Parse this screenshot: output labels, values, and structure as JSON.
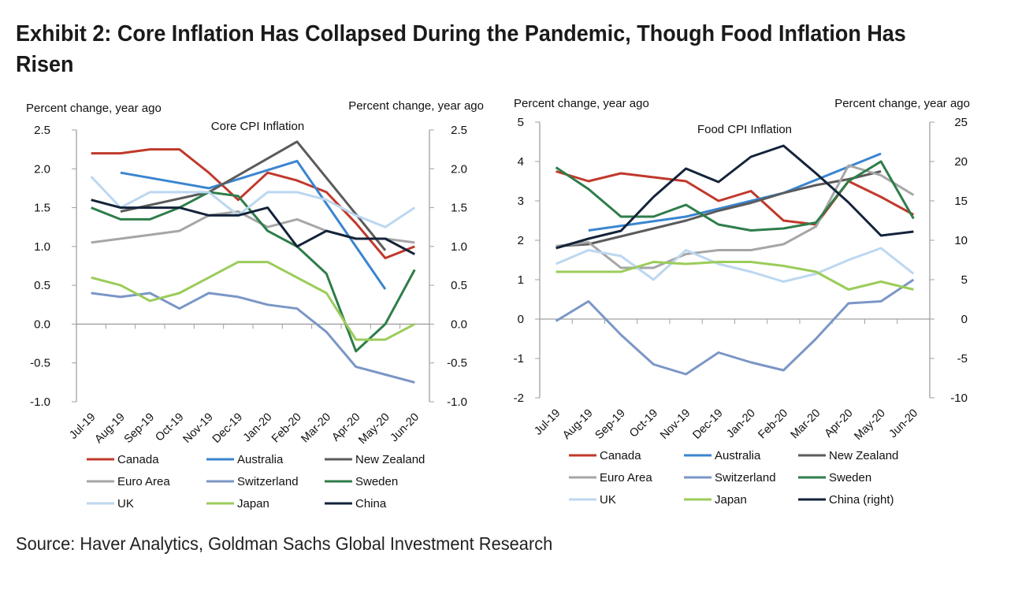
{
  "title": "Exhibit 2: Core Inflation Has Collapsed During the Pandemic, Though Food Inflation Has Risen",
  "source": "Source: Haver Analytics, Goldman Sachs Global Investment Research",
  "colors": {
    "Canada": "#c0392b",
    "Australia": "#3a85d0",
    "New Zealand": "#5b5b5b",
    "Euro Area": "#a6a6a6",
    "Switzerland": "#7b96c6",
    "Sweden": "#2e7d4a",
    "UK": "#bcd7f0",
    "Japan": "#9bcc5a",
    "China": "#14233a",
    "China (right)": "#14233a"
  },
  "chart_data": [
    {
      "type": "line",
      "title": "Core CPI Inflation",
      "ylabel_left": "Percent change, year ago",
      "ylabel_right": "Percent change, year ago",
      "categories": [
        "Jul-19",
        "Aug-19",
        "Sep-19",
        "Oct-19",
        "Nov-19",
        "Dec-19",
        "Jan-20",
        "Feb-20",
        "Mar-20",
        "Apr-20",
        "May-20",
        "Jun-20"
      ],
      "ylim": [
        -1.0,
        2.5
      ],
      "yticks": [
        "2.5",
        "2.0",
        "1.5",
        "1.0",
        "0.5",
        "0.0",
        "-0.5",
        "-1.0"
      ],
      "ytick_values": [
        2.5,
        2.0,
        1.5,
        1.0,
        0.5,
        0.0,
        -0.5,
        -1.0
      ],
      "y2lim": [
        -1.0,
        2.5
      ],
      "y2ticks": [
        "2.5",
        "2.0",
        "1.5",
        "1.0",
        "0.5",
        "0.0",
        "-0.5",
        "-1.0"
      ],
      "y2tick_values": [
        2.5,
        2.0,
        1.5,
        1.0,
        0.5,
        0.0,
        -0.5,
        -1.0
      ],
      "grid": false,
      "legend": "bottom",
      "legend_entries": [
        "Canada",
        "Australia",
        "New Zealand",
        "Euro Area",
        "Switzerland",
        "Sweden",
        "UK",
        "Japan",
        "China"
      ],
      "series": [
        {
          "name": "Canada",
          "axis": "left",
          "values": [
            2.2,
            2.2,
            2.25,
            2.25,
            1.95,
            1.6,
            1.95,
            1.85,
            1.7,
            1.3,
            0.85,
            1.0
          ]
        },
        {
          "name": "Australia",
          "axis": "left",
          "values": [
            null,
            1.95,
            null,
            null,
            1.75,
            null,
            null,
            2.1,
            null,
            null,
            0.45,
            null
          ]
        },
        {
          "name": "New Zealand",
          "axis": "left",
          "values": [
            null,
            1.45,
            null,
            null,
            1.7,
            null,
            null,
            2.35,
            null,
            null,
            0.95,
            null
          ]
        },
        {
          "name": "Euro Area",
          "axis": "left",
          "values": [
            1.05,
            1.1,
            1.15,
            1.2,
            1.4,
            1.45,
            1.25,
            1.35,
            1.2,
            1.1,
            1.1,
            1.05
          ]
        },
        {
          "name": "Switzerland",
          "axis": "left",
          "values": [
            0.4,
            0.35,
            0.4,
            0.2,
            0.4,
            0.35,
            0.25,
            0.2,
            -0.1,
            -0.55,
            -0.65,
            -0.75
          ]
        },
        {
          "name": "Sweden",
          "axis": "left",
          "values": [
            1.5,
            1.35,
            1.35,
            1.5,
            1.7,
            1.65,
            1.2,
            1.0,
            0.65,
            -0.35,
            0.0,
            0.7
          ]
        },
        {
          "name": "UK",
          "axis": "left",
          "values": [
            1.9,
            1.5,
            1.7,
            1.7,
            1.7,
            1.4,
            1.7,
            1.7,
            1.6,
            1.4,
            1.25,
            1.5
          ]
        },
        {
          "name": "Japan",
          "axis": "left",
          "values": [
            0.6,
            0.5,
            0.3,
            0.4,
            0.6,
            0.8,
            0.8,
            0.6,
            0.4,
            -0.2,
            -0.2,
            0.0
          ]
        },
        {
          "name": "China",
          "axis": "left",
          "values": [
            1.6,
            1.5,
            1.5,
            1.5,
            1.4,
            1.4,
            1.5,
            1.0,
            1.2,
            1.1,
            1.1,
            0.9
          ]
        }
      ]
    },
    {
      "type": "line",
      "title": "Food CPI Inflation",
      "ylabel_left": "Percent change, year ago",
      "ylabel_right": "Percent change, year ago",
      "categories": [
        "Jul-19",
        "Aug-19",
        "Sep-19",
        "Oct-19",
        "Nov-19",
        "Dec-19",
        "Jan-20",
        "Feb-20",
        "Mar-20",
        "Apr-20",
        "May-20",
        "Jun-20"
      ],
      "ylim": [
        -2,
        5
      ],
      "yticks": [
        "5",
        "4",
        "3",
        "2",
        "1",
        "0",
        "-1",
        "-2"
      ],
      "ytick_values": [
        5,
        4,
        3,
        2,
        1,
        0,
        -1,
        -2
      ],
      "y2lim": [
        -10,
        25
      ],
      "y2ticks": [
        "25",
        "20",
        "15",
        "10",
        "5",
        "0",
        "-5",
        "-10"
      ],
      "y2tick_values": [
        25,
        20,
        15,
        10,
        5,
        0,
        -5,
        -10
      ],
      "grid": false,
      "legend": "bottom",
      "legend_entries": [
        "Canada",
        "Australia",
        "New Zealand",
        "Euro Area",
        "Switzerland",
        "Sweden",
        "UK",
        "Japan",
        "China (right)"
      ],
      "series": [
        {
          "name": "Canada",
          "axis": "left",
          "values": [
            3.75,
            3.5,
            3.7,
            3.6,
            3.5,
            3.0,
            3.25,
            2.5,
            2.4,
            3.5,
            3.1,
            2.65
          ]
        },
        {
          "name": "Australia",
          "axis": "left",
          "values": [
            null,
            2.25,
            null,
            null,
            2.6,
            null,
            null,
            3.2,
            null,
            null,
            4.2,
            null
          ]
        },
        {
          "name": "New Zealand",
          "axis": "left",
          "values": [
            1.85,
            1.9,
            2.1,
            2.3,
            2.5,
            2.75,
            2.95,
            3.2,
            3.4,
            3.55,
            3.75,
            null
          ]
        },
        {
          "name": "Euro Area",
          "axis": "left",
          "values": [
            1.85,
            1.95,
            1.3,
            1.3,
            1.65,
            1.75,
            1.75,
            1.9,
            2.35,
            3.9,
            3.65,
            3.15
          ]
        },
        {
          "name": "Switzerland",
          "axis": "left",
          "values": [
            -0.05,
            0.45,
            -0.4,
            -1.15,
            -1.4,
            -0.85,
            -1.1,
            -1.3,
            -0.5,
            0.4,
            0.45,
            1.0
          ]
        },
        {
          "name": "Sweden",
          "axis": "left",
          "values": [
            3.85,
            3.3,
            2.6,
            2.6,
            2.9,
            2.4,
            2.25,
            2.3,
            2.45,
            3.5,
            4.0,
            2.55
          ]
        },
        {
          "name": "UK",
          "axis": "left",
          "values": [
            1.4,
            1.75,
            1.6,
            1.0,
            1.75,
            1.4,
            1.2,
            0.95,
            1.15,
            1.5,
            1.8,
            1.15
          ]
        },
        {
          "name": "Japan",
          "axis": "left",
          "values": [
            1.2,
            1.2,
            1.2,
            1.45,
            1.4,
            1.45,
            1.45,
            1.35,
            1.2,
            0.75,
            0.95,
            0.75
          ]
        },
        {
          "name": "China (right)",
          "axis": "right",
          "values": [
            9.0,
            10.2,
            11.2,
            15.5,
            19.1,
            17.4,
            20.6,
            22.0,
            18.5,
            14.8,
            10.6,
            11.1
          ]
        }
      ]
    }
  ]
}
